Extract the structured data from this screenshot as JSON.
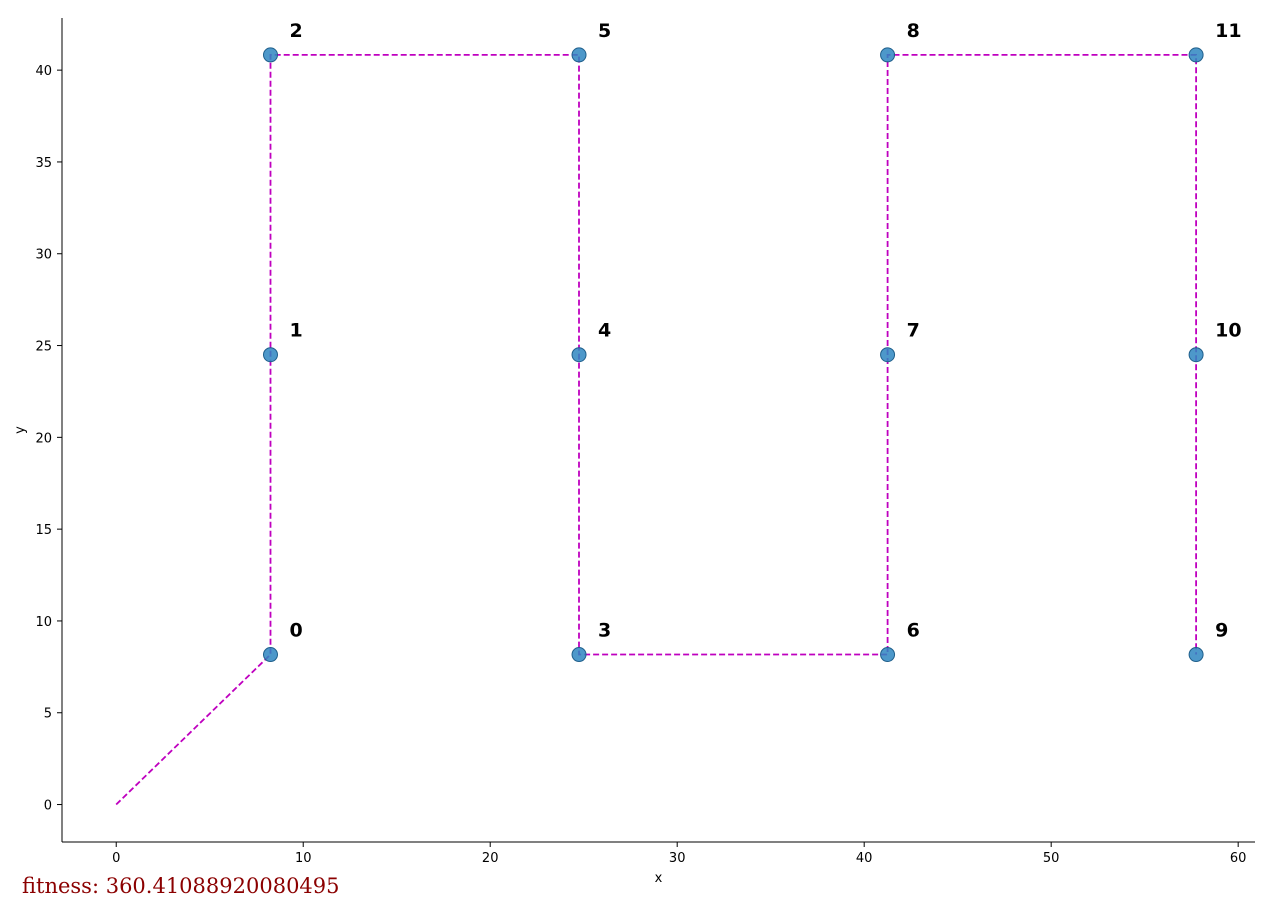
{
  "chart_data": {
    "type": "scatter",
    "title": "",
    "xlabel": "x",
    "ylabel": "y",
    "xlim": [
      -2.9,
      60.9
    ],
    "ylim": [
      -2.04,
      42.84
    ],
    "xticks": [
      0,
      10,
      20,
      30,
      40,
      50,
      60
    ],
    "yticks": [
      0,
      5,
      10,
      15,
      20,
      25,
      30,
      35,
      40
    ],
    "grid": false,
    "points": [
      {
        "label": "0",
        "x": 8.25,
        "y": 8.17
      },
      {
        "label": "1",
        "x": 8.25,
        "y": 24.5
      },
      {
        "label": "2",
        "x": 8.25,
        "y": 40.83
      },
      {
        "label": "3",
        "x": 24.75,
        "y": 8.17
      },
      {
        "label": "4",
        "x": 24.75,
        "y": 24.5
      },
      {
        "label": "5",
        "x": 24.75,
        "y": 40.83
      },
      {
        "label": "6",
        "x": 41.25,
        "y": 8.17
      },
      {
        "label": "7",
        "x": 41.25,
        "y": 24.5
      },
      {
        "label": "8",
        "x": 41.25,
        "y": 40.83
      },
      {
        "label": "9",
        "x": 57.75,
        "y": 8.17
      },
      {
        "label": "10",
        "x": 57.75,
        "y": 24.5
      },
      {
        "label": "11",
        "x": 57.75,
        "y": 40.83
      }
    ],
    "route": {
      "start": {
        "x": 0,
        "y": 0
      },
      "order": [
        0,
        1,
        2,
        5,
        4,
        3,
        6,
        7,
        8,
        11,
        10,
        9
      ],
      "style": "dashed",
      "color": "#bf00bf"
    },
    "point_color": "#2e86c1"
  },
  "fitness_text": "fitness: 360.41088920080495"
}
